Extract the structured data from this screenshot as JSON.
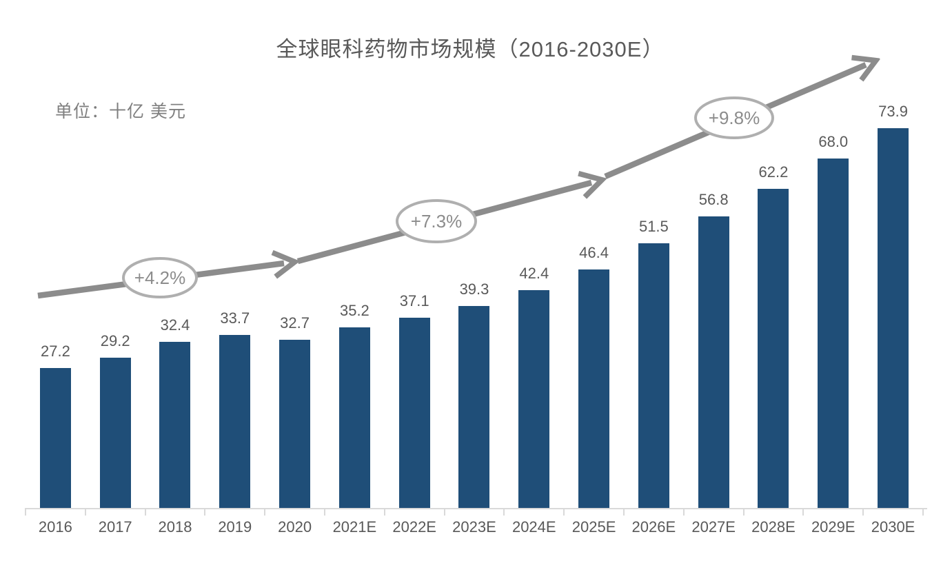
{
  "title": "全球眼科药物市场规模（2016-2030E）",
  "unit_label": "单位：十亿 美元",
  "colors": {
    "bar": "#1f4e78",
    "trend_arrow": "#8c8c8c",
    "text_labels": "#595959",
    "unit_text": "#7f7f7f",
    "axis": "#d9d9d9",
    "ellipse_stroke": "#afafaf",
    "percent_text": "#8c8c8c",
    "background": "#ffffff"
  },
  "chart_data": {
    "type": "bar",
    "title": "全球眼科药物市场规模（2016-2030E）",
    "unit": "十亿 美元",
    "categories": [
      "2016",
      "2017",
      "2018",
      "2019",
      "2020",
      "2021E",
      "2022E",
      "2023E",
      "2024E",
      "2025E",
      "2026E",
      "2027E",
      "2028E",
      "2029E",
      "2030E"
    ],
    "values": [
      27.2,
      29.2,
      32.4,
      33.7,
      32.7,
      35.2,
      37.1,
      39.3,
      42.4,
      46.4,
      51.5,
      56.8,
      62.2,
      68.0,
      73.9
    ],
    "value_labels_shown": true,
    "xlabel": "",
    "ylabel": "",
    "ylim": [
      0,
      80
    ],
    "grid": false,
    "legend": false,
    "annotations": [
      {
        "label": "+4.2%",
        "shape": "ellipse-on-arrow"
      },
      {
        "label": "+7.3%",
        "shape": "ellipse-on-arrow"
      },
      {
        "label": "+9.8%",
        "shape": "ellipse-on-arrow"
      }
    ]
  }
}
